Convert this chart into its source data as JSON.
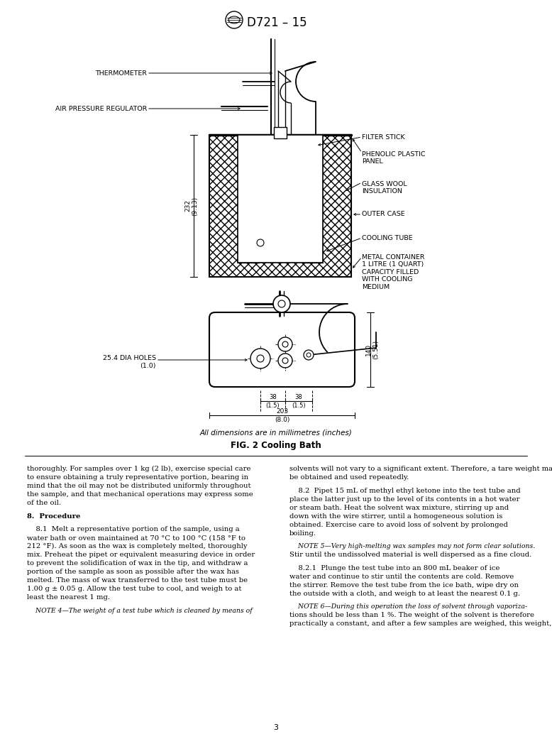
{
  "page_bg": "#ffffff",
  "header_title": "D721 – 15",
  "fig_caption_main": "FIG. 2 Cooling Bath",
  "fig_caption_sub": "All dimensions are in millimetres (inches)",
  "page_number": "3",
  "body_text_left_col": [
    "thoroughly. For samples over 1 kg (2 lb), exercise special care",
    "to ensure obtaining a truly representative portion, bearing in",
    "mind that the oil may not be distributed uniformly throughout",
    "the sample, and that mechanical operations may express some",
    "of the oil.",
    "",
    "8.  Procedure",
    "",
    "    8.1  Melt a representative portion of the sample, using a",
    "water bath or oven maintained at 70 °C to 100 °C (158 °F to",
    "212 °F). As soon as the wax is completely melted, thoroughly",
    "mix. Preheat the pipet or equivalent measuring device in order",
    "to prevent the solidification of wax in the tip, and withdraw a",
    "portion of the sample as soon as possible after the wax has",
    "melted. The mass of wax transferred to the test tube must be",
    "1.00 g ± 0.05 g. Allow the test tube to cool, and weigh to at",
    "least the nearest 1 mg.",
    "",
    "    NOTE 4—The weight of a test tube which is cleaned by means of"
  ],
  "body_text_right_col": [
    "solvents will not vary to a significant extent. Therefore, a tare weight may",
    "be obtained and used repeatedly.",
    "",
    "    8.2  Pipet 15 mL of methyl ethyl ketone into the test tube and",
    "place the latter just up to the level of its contents in a hot water",
    "or steam bath. Heat the solvent wax mixture, stirring up and",
    "down with the wire stirrer, until a homogeneous solution is",
    "obtained. Exercise care to avoid loss of solvent by prolonged",
    "boiling.",
    "",
    "    NOTE 5—Very high-melting wax samples may not form clear solutions.",
    "Stir until the undissolved material is well dispersed as a fine cloud.",
    "",
    "    8.2.1  Plunge the test tube into an 800 mL beaker of ice",
    "water and continue to stir until the contents are cold. Remove",
    "the stirrer. Remove the test tube from the ice bath, wipe dry on",
    "the outside with a cloth, and weigh to at least the nearest 0.1 g.",
    "",
    "    NOTE 6—During this operation the loss of solvent through vaporiza-",
    "tions should be less than 1 %. The weight of the solvent is therefore",
    "practically a constant, and after a few samples are weighed, this weight,"
  ]
}
